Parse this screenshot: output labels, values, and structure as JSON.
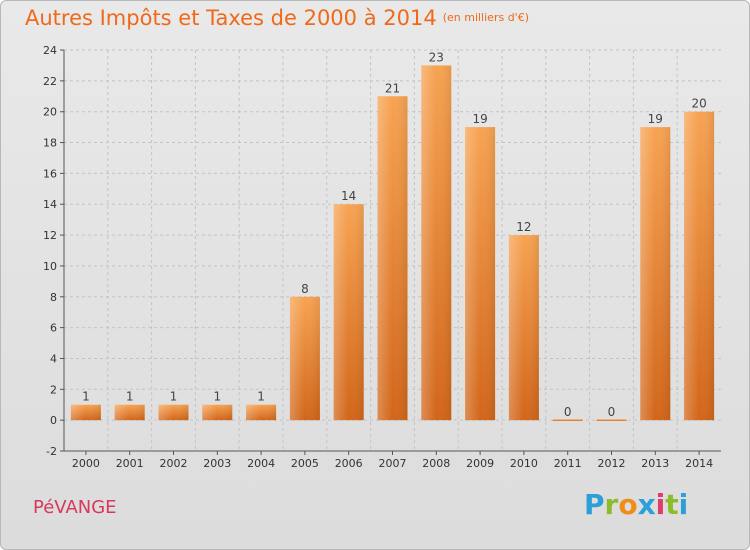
{
  "header": {
    "title": "Autres Impôts et Taxes de 2000 à 2014",
    "unit": "(en milliers d'€)"
  },
  "footer": {
    "city": "PéVANGE",
    "brand": "Proxiti",
    "brand_colors": [
      "#2a9fd8",
      "#8bbd2a",
      "#f08c1a",
      "#2a9fd8",
      "#e03b6a",
      "#8bbd2a",
      "#2a9fd8"
    ]
  },
  "chart_data": {
    "type": "bar",
    "title": "Autres Impôts et Taxes de 2000 à 2014",
    "subtitle": "(en milliers d'€)",
    "categories": [
      "2000",
      "2001",
      "2002",
      "2003",
      "2004",
      "2005",
      "2006",
      "2007",
      "2008",
      "2009",
      "2010",
      "2011",
      "2012",
      "2013",
      "2014"
    ],
    "values": [
      1,
      1,
      1,
      1,
      1,
      8,
      14,
      21,
      23,
      19,
      12,
      0,
      0,
      19,
      20
    ],
    "ylim": [
      -2,
      24
    ],
    "yticks": [
      -2,
      0,
      2,
      4,
      6,
      8,
      10,
      12,
      14,
      16,
      18,
      20,
      22,
      24
    ],
    "grid": "horizontal dashed",
    "bar_color": "#f0902e"
  }
}
